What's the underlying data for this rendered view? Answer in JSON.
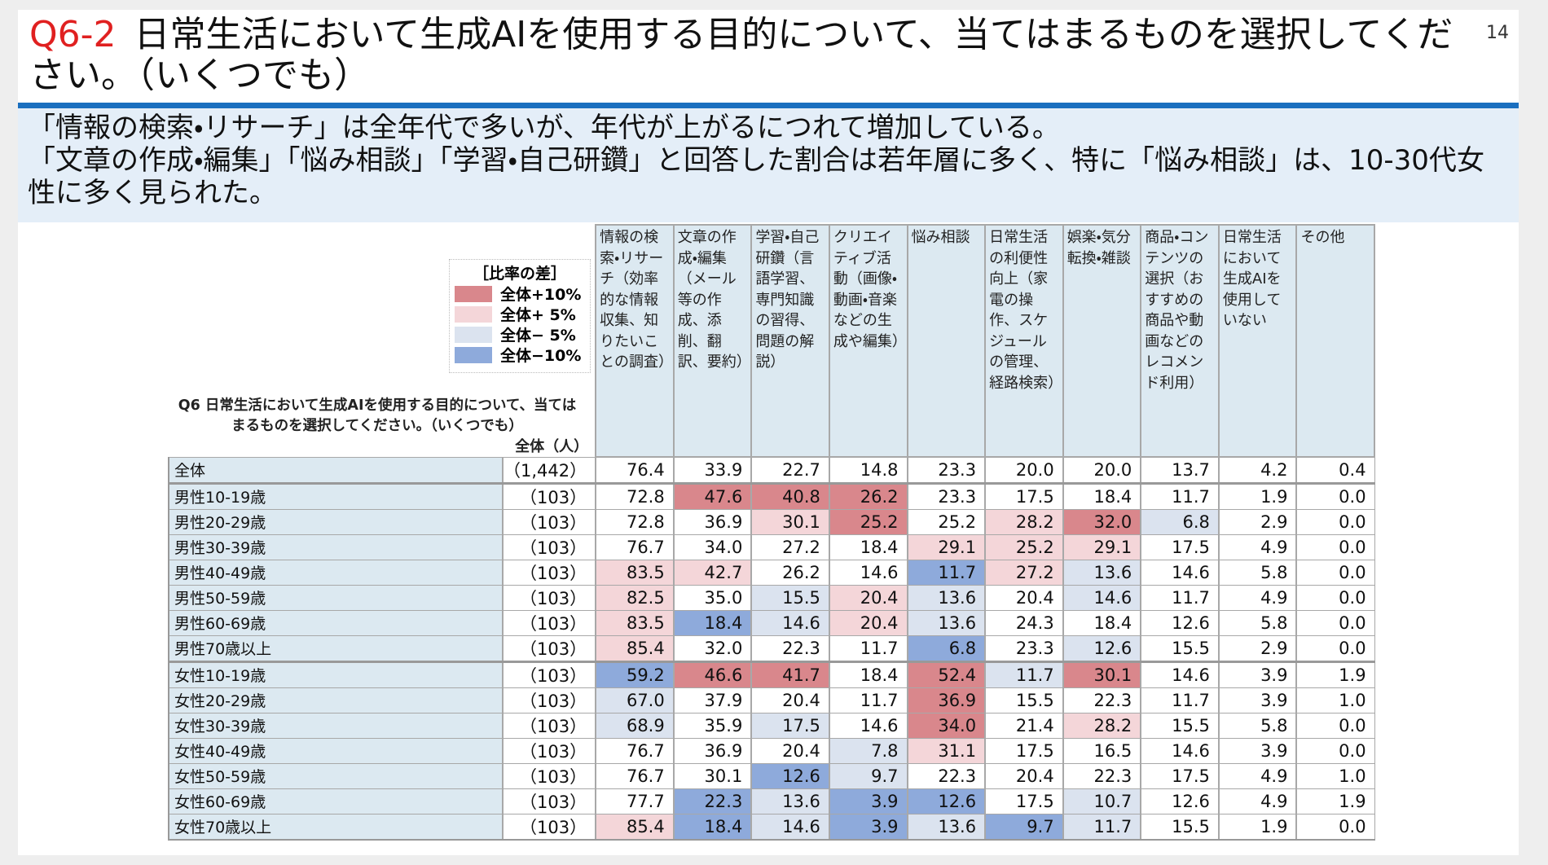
{
  "header": {
    "label": "Q6-2",
    "title": "日常生活において生成AIを使用する目的について、当てはまるものを選択してください。（いくつでも）",
    "page": "14"
  },
  "summary": [
    "「情報の検索・リサーチ」は全年代で多いが、年代が上がるにつれて増加している。",
    "「文章の作成・編集」「悩み相談」「学習・自己研鑽」と回答した割合は若年層に多く、特に「悩み相談」は、10-30代女性に多く見られた。"
  ],
  "table": {
    "legend": {
      "title": "［比率の差］",
      "items": [
        {
          "label": "全体+10%",
          "color": "#d9878c"
        },
        {
          "label": "全体+ 5%",
          "color": "#f4d6d9"
        },
        {
          "label": "全体− 5%",
          "color": "#dbe3ef"
        },
        {
          "label": "全体−10%",
          "color": "#8eaadb"
        }
      ]
    },
    "question": "Q6 日常生活において生成AIを使用する目的について、当てはまるものを選択してください。（いくつでも）",
    "n_header": "全体（人）",
    "columns": [
      "情報の検索・リサーチ（効率的な情報収集、知りたいことの調査）",
      "文章の作成・編集（メール等の作成、添削、翻訳、要約）",
      "学習・自己研鑽（言語学習、専門知識の習得、問題の解説）",
      "クリエイティブ活動（画像・動画・音楽などの生成や編集）",
      "悩み相談",
      "日常生活の利便性向上（家電の操作、スケジュールの管理、経路検索）",
      "娯楽・気分転換・雑談",
      "商品・コンテンツの選択（おすすめの商品や動画などのレコメンド利用）",
      "日常生活において生成AIを使用していない",
      "その他"
    ],
    "rows": [
      {
        "label": "全体",
        "n": "（1,442）",
        "values": [
          "76.4",
          "33.9",
          "22.7",
          "14.8",
          "23.3",
          "20.0",
          "20.0",
          "13.7",
          "4.2",
          "0.4"
        ],
        "shades": [
          null,
          null,
          null,
          null,
          null,
          null,
          null,
          null,
          null,
          null
        ]
      },
      {
        "label": "男性10-19歳",
        "n": "（103）",
        "values": [
          "72.8",
          "47.6",
          "40.8",
          "26.2",
          "23.3",
          "17.5",
          "18.4",
          "11.7",
          "1.9",
          "0.0"
        ],
        "shades": [
          null,
          0,
          0,
          0,
          null,
          null,
          null,
          null,
          null,
          null
        ]
      },
      {
        "label": "男性20-29歳",
        "n": "（103）",
        "values": [
          "72.8",
          "36.9",
          "30.1",
          "25.2",
          "25.2",
          "28.2",
          "32.0",
          "6.8",
          "2.9",
          "0.0"
        ],
        "shades": [
          null,
          null,
          1,
          0,
          null,
          1,
          0,
          2,
          null,
          null
        ]
      },
      {
        "label": "男性30-39歳",
        "n": "（103）",
        "values": [
          "76.7",
          "34.0",
          "27.2",
          "18.4",
          "29.1",
          "25.2",
          "29.1",
          "17.5",
          "4.9",
          "0.0"
        ],
        "shades": [
          null,
          null,
          null,
          null,
          1,
          1,
          1,
          null,
          null,
          null
        ]
      },
      {
        "label": "男性40-49歳",
        "n": "（103）",
        "values": [
          "83.5",
          "42.7",
          "26.2",
          "14.6",
          "11.7",
          "27.2",
          "13.6",
          "14.6",
          "5.8",
          "0.0"
        ],
        "shades": [
          1,
          1,
          null,
          null,
          3,
          1,
          2,
          null,
          null,
          null
        ]
      },
      {
        "label": "男性50-59歳",
        "n": "（103）",
        "values": [
          "82.5",
          "35.0",
          "15.5",
          "20.4",
          "13.6",
          "20.4",
          "14.6",
          "11.7",
          "4.9",
          "0.0"
        ],
        "shades": [
          1,
          null,
          2,
          1,
          2,
          null,
          2,
          null,
          null,
          null
        ]
      },
      {
        "label": "男性60-69歳",
        "n": "（103）",
        "values": [
          "83.5",
          "18.4",
          "14.6",
          "20.4",
          "13.6",
          "24.3",
          "18.4",
          "12.6",
          "5.8",
          "0.0"
        ],
        "shades": [
          1,
          3,
          2,
          1,
          2,
          null,
          null,
          null,
          null,
          null
        ]
      },
      {
        "label": "男性70歳以上",
        "n": "（103）",
        "values": [
          "85.4",
          "32.0",
          "22.3",
          "11.7",
          "6.8",
          "23.3",
          "12.6",
          "15.5",
          "2.9",
          "0.0"
        ],
        "shades": [
          1,
          null,
          null,
          null,
          3,
          null,
          2,
          null,
          null,
          null
        ]
      },
      {
        "label": "女性10-19歳",
        "n": "（103）",
        "values": [
          "59.2",
          "46.6",
          "41.7",
          "18.4",
          "52.4",
          "11.7",
          "30.1",
          "14.6",
          "3.9",
          "1.9"
        ],
        "shades": [
          3,
          0,
          0,
          null,
          0,
          2,
          0,
          null,
          null,
          null
        ]
      },
      {
        "label": "女性20-29歳",
        "n": "（103）",
        "values": [
          "67.0",
          "37.9",
          "20.4",
          "11.7",
          "36.9",
          "15.5",
          "22.3",
          "11.7",
          "3.9",
          "1.0"
        ],
        "shades": [
          2,
          null,
          null,
          null,
          0,
          null,
          null,
          null,
          null,
          null
        ]
      },
      {
        "label": "女性30-39歳",
        "n": "（103）",
        "values": [
          "68.9",
          "35.9",
          "17.5",
          "14.6",
          "34.0",
          "21.4",
          "28.2",
          "15.5",
          "5.8",
          "0.0"
        ],
        "shades": [
          2,
          null,
          2,
          null,
          0,
          null,
          1,
          null,
          null,
          null
        ]
      },
      {
        "label": "女性40-49歳",
        "n": "（103）",
        "values": [
          "76.7",
          "36.9",
          "20.4",
          "7.8",
          "31.1",
          "17.5",
          "16.5",
          "14.6",
          "3.9",
          "0.0"
        ],
        "shades": [
          null,
          null,
          null,
          2,
          1,
          null,
          null,
          null,
          null,
          null
        ]
      },
      {
        "label": "女性50-59歳",
        "n": "（103）",
        "values": [
          "76.7",
          "30.1",
          "12.6",
          "9.7",
          "22.3",
          "20.4",
          "22.3",
          "17.5",
          "4.9",
          "1.0"
        ],
        "shades": [
          null,
          null,
          3,
          2,
          null,
          null,
          null,
          null,
          null,
          null
        ]
      },
      {
        "label": "女性60-69歳",
        "n": "（103）",
        "values": [
          "77.7",
          "22.3",
          "13.6",
          "3.9",
          "12.6",
          "17.5",
          "10.7",
          "12.6",
          "4.9",
          "1.9"
        ],
        "shades": [
          null,
          3,
          2,
          3,
          3,
          null,
          2,
          null,
          null,
          null
        ]
      },
      {
        "label": "女性70歳以上",
        "n": "（103）",
        "values": [
          "85.4",
          "18.4",
          "14.6",
          "3.9",
          "13.6",
          "9.7",
          "11.7",
          "15.5",
          "1.9",
          "0.0"
        ],
        "shades": [
          1,
          3,
          2,
          3,
          2,
          3,
          2,
          null,
          null,
          null
        ]
      }
    ]
  }
}
